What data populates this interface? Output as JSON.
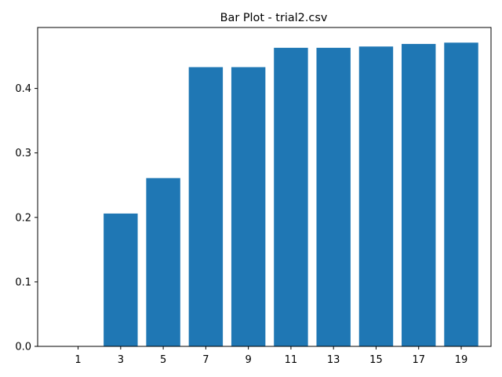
{
  "chart_data": {
    "type": "bar",
    "title": "Bar Plot - trial2.csv",
    "xlabel": "",
    "ylabel": "",
    "categories": [
      1,
      3,
      5,
      7,
      9,
      11,
      13,
      15,
      17,
      19
    ],
    "values": [
      0.0,
      0.206,
      0.261,
      0.433,
      0.433,
      0.463,
      0.463,
      0.465,
      0.469,
      0.471
    ],
    "xlim": [
      -0.9,
      20.4
    ],
    "ylim": [
      0.0,
      0.4945
    ],
    "yticks": [
      0.0,
      0.1,
      0.2,
      0.3,
      0.4
    ],
    "ytick_labels": [
      "0.0",
      "0.1",
      "0.2",
      "0.3",
      "0.4"
    ],
    "xticks": [
      1,
      3,
      5,
      7,
      9,
      11,
      13,
      15,
      17,
      19
    ],
    "xtick_labels": [
      "1",
      "3",
      "5",
      "7",
      "9",
      "11",
      "13",
      "15",
      "17",
      "19"
    ],
    "bar_width": 1.6,
    "bar_color": "#1f77b4",
    "grid": false,
    "legend": "none"
  }
}
